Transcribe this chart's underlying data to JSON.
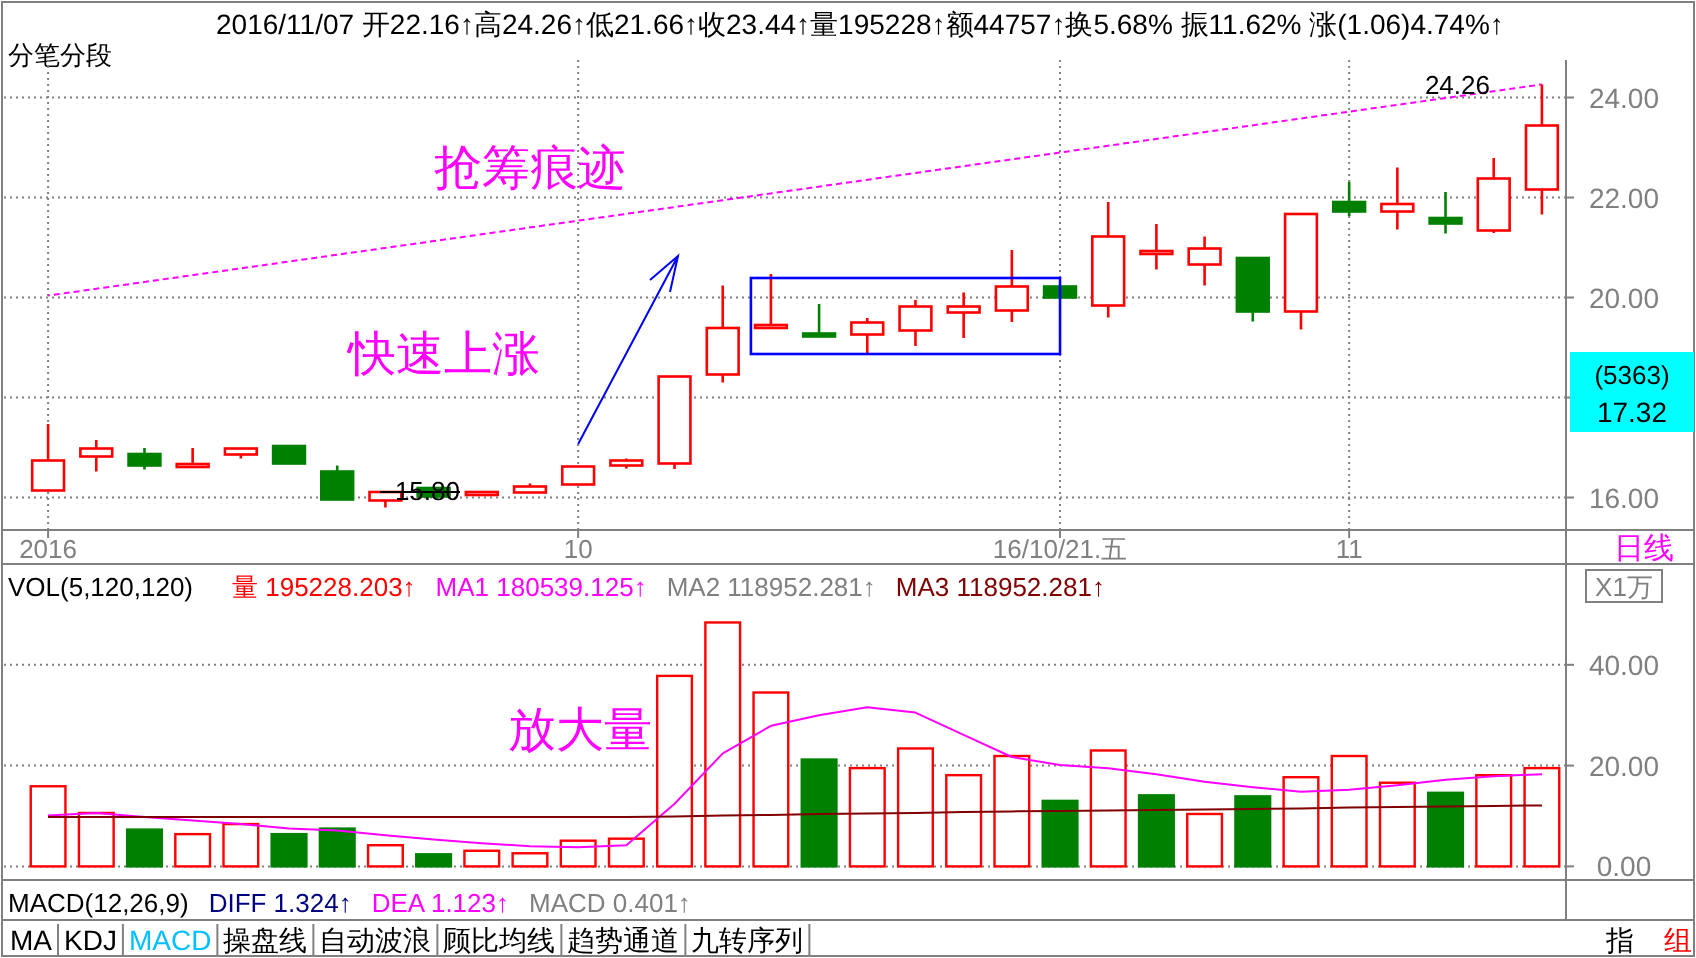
{
  "chart_data": [
    {
      "type": "candlestick",
      "title": "2016/11/07 开22.16↑高24.26↑低21.66↑收23.44↑量195228↑额44757↑换5.68% 振11.62% 涨(1.06)4.74%↑",
      "subtitle": "分笔分段",
      "categories": [
        "2016",
        null,
        null,
        null,
        null,
        null,
        null,
        null,
        null,
        null,
        null,
        "10",
        null,
        null,
        null,
        null,
        null,
        null,
        null,
        null,
        null,
        "16/10/21.五",
        null,
        null,
        null,
        null,
        null,
        "11",
        null,
        null,
        null,
        null
      ],
      "ohlc": [
        [
          16.14,
          17.47,
          16.14,
          16.74
        ],
        [
          16.82,
          17.15,
          16.52,
          16.98
        ],
        [
          16.87,
          16.99,
          16.56,
          16.64
        ],
        [
          16.65,
          16.99,
          16.65,
          16.67
        ],
        [
          16.86,
          16.98,
          16.78,
          16.98
        ],
        [
          17.03,
          17.03,
          16.68,
          16.68
        ],
        [
          16.52,
          16.64,
          15.96,
          15.96
        ],
        [
          15.94,
          16.11,
          15.8,
          16.11
        ],
        [
          16.19,
          16.2,
          16.0,
          16.02
        ],
        [
          16.09,
          16.12,
          16.08,
          16.11
        ],
        [
          16.1,
          16.28,
          16.1,
          16.22
        ],
        [
          16.26,
          16.62,
          16.26,
          16.62
        ],
        [
          16.64,
          16.78,
          16.58,
          16.74
        ],
        [
          16.68,
          18.42,
          16.57,
          18.42
        ],
        [
          18.46,
          20.24,
          18.3,
          19.39
        ],
        [
          19.43,
          20.47,
          19.43,
          19.45
        ],
        [
          19.28,
          19.87,
          19.21,
          19.26
        ],
        [
          19.26,
          19.59,
          18.87,
          19.5
        ],
        [
          19.34,
          19.95,
          19.03,
          19.82
        ],
        [
          19.7,
          20.1,
          19.19,
          19.82
        ],
        [
          19.74,
          20.95,
          19.51,
          20.22
        ],
        [
          20.22,
          20.22,
          20.0,
          20.0
        ],
        [
          19.84,
          21.91,
          19.6,
          21.22
        ],
        [
          20.91,
          21.47,
          20.56,
          20.93
        ],
        [
          20.66,
          21.22,
          20.24,
          20.98
        ],
        [
          20.79,
          20.8,
          19.52,
          19.72
        ],
        [
          19.72,
          21.67,
          19.36,
          21.67
        ],
        [
          21.91,
          22.31,
          21.63,
          21.72
        ],
        [
          21.72,
          22.6,
          21.36,
          21.87
        ],
        [
          21.59,
          22.11,
          21.28,
          21.48
        ],
        [
          21.34,
          22.79,
          21.29,
          22.38
        ],
        [
          22.16,
          24.26,
          21.66,
          23.44
        ]
      ],
      "colors": [
        "#ff0000",
        "#ff0000",
        "#008000",
        "#ff0000",
        "#ff0000",
        "#008000",
        "#008000",
        "#ff0000",
        "#008000",
        "#ff0000",
        "#ff0000",
        "#ff0000",
        "#ff0000",
        "#ff0000",
        "#ff0000",
        "#ff0000",
        "#008000",
        "#ff0000",
        "#ff0000",
        "#ff0000",
        "#ff0000",
        "#008000",
        "#ff0000",
        "#ff0000",
        "#ff0000",
        "#008000",
        "#ff0000",
        "#008000",
        "#ff0000",
        "#008000",
        "#ff0000",
        "#ff0000"
      ],
      "series": [
        {
          "type": "line",
          "color": "#ff00ff",
          "line_style": "dashed",
          "values": [
            20.04,
            null,
            null,
            null,
            null,
            null,
            null,
            null,
            null,
            null,
            null,
            null,
            null,
            null,
            null,
            null,
            null,
            null,
            null,
            null,
            null,
            null,
            null,
            null,
            null,
            null,
            null,
            null,
            null,
            null,
            null,
            24.26
          ]
        }
      ],
      "ylim": [
        15.35,
        24.75
      ],
      "yticks": [
        {
          "value": 16,
          "label": "16.00"
        },
        {
          "value": 18,
          "label": null
        },
        {
          "value": 20,
          "label": "20.00"
        },
        {
          "value": 22,
          "label": "22.00"
        },
        {
          "value": 24,
          "label": "24.00"
        }
      ],
      "grid": true,
      "annotations": [
        "抢筹痕迹",
        "快速上涨",
        "24.26",
        "15.80",
        "(5363)",
        "17.32",
        "日线"
      ]
    },
    {
      "type": "bar",
      "title": "VOL(5,120,120)",
      "categories": [
        null,
        null,
        null,
        null,
        null,
        null,
        null,
        null,
        null,
        null,
        null,
        null,
        null,
        null,
        null,
        null,
        null,
        null,
        null,
        null,
        null,
        null,
        null,
        null,
        null,
        null,
        null,
        null,
        null,
        null,
        null,
        null
      ],
      "series": [
        {
          "type": "bar",
          "name": "量 195228.203↑",
          "colors": [
            "#ff0000",
            "#ff0000",
            "#008000",
            "#ff0000",
            "#ff0000",
            "#008000",
            "#008000",
            "#ff0000",
            "#008000",
            "#ff0000",
            "#ff0000",
            "#ff0000",
            "#ff0000",
            "#ff0000",
            "#ff0000",
            "#ff0000",
            "#008000",
            "#ff0000",
            "#ff0000",
            "#ff0000",
            "#ff0000",
            "#008000",
            "#ff0000",
            "#008000",
            "#ff0000",
            "#008000",
            "#ff0000",
            "#ff0000",
            "#ff0000",
            "#008000",
            "#ff0000",
            "#ff0000"
          ],
          "values": [
            15.9,
            10.6,
            7.3,
            6.4,
            8.4,
            6.4,
            7.5,
            4.2,
            2.4,
            3.1,
            2.6,
            5.1,
            5.5,
            37.8,
            48.4,
            34.5,
            21.2,
            19.5,
            23.4,
            18.1,
            21.9,
            13.0,
            23.0,
            14.1,
            10.4,
            13.9,
            17.7,
            21.9,
            16.6,
            14.6,
            18.1,
            19.5
          ]
        },
        {
          "type": "line",
          "name": "MA1 180539.125↑",
          "color": "#ff00ff",
          "values": [
            10.1,
            10.6,
            9.8,
            9.1,
            8.4,
            7.5,
            7.1,
            6.2,
            5.3,
            4.6,
            4.0,
            3.8,
            4.2,
            12.4,
            22.4,
            27.9,
            30.0,
            31.6,
            30.5,
            26.1,
            21.7,
            20.1,
            19.5,
            18.3,
            16.8,
            15.7,
            14.8,
            15.2,
            16.1,
            17.2,
            17.9,
            18.3
          ]
        },
        {
          "type": "line",
          "name": "MA2 118952.281↑",
          "color": "#808080",
          "values": [
            null,
            null,
            null,
            null,
            null,
            null,
            null,
            null,
            null,
            null,
            null,
            null,
            null,
            null,
            null,
            null,
            null,
            null,
            null,
            null,
            null,
            null,
            null,
            null,
            null,
            null,
            null,
            null,
            null,
            null,
            null,
            null
          ]
        },
        {
          "type": "line",
          "name": "MA3 118952.281↑",
          "color": "#800000",
          "values": [
            9.8,
            9.8,
            9.8,
            9.8,
            9.8,
            9.8,
            9.8,
            9.8,
            9.8,
            9.8,
            9.8,
            9.8,
            9.8,
            9.9,
            10.1,
            10.2,
            10.4,
            10.5,
            10.6,
            10.8,
            10.9,
            11.0,
            11.1,
            11.2,
            11.3,
            11.4,
            11.5,
            11.7,
            11.8,
            11.9,
            12.0,
            12.1
          ]
        }
      ],
      "ylim": [
        -2.7,
        60
      ],
      "yticks": [
        {
          "value": 0,
          "label": "0.00"
        },
        {
          "value": 20,
          "label": "20.00"
        },
        {
          "value": 40,
          "label": "40.00"
        }
      ],
      "grid": "y",
      "tick_labels": "y",
      "annotations": [
        "放大量",
        "X1万",
        "MACD(12,26,9)",
        "DIFF 1.324↑",
        "DEA 1.123↑",
        "MACD 0.401↑",
        "MA",
        "KDJ",
        "MACD",
        "操盘线",
        "自动波浪",
        "顾比均线",
        "趋势通道",
        "九转序列",
        "指",
        "组"
      ]
    }
  ]
}
